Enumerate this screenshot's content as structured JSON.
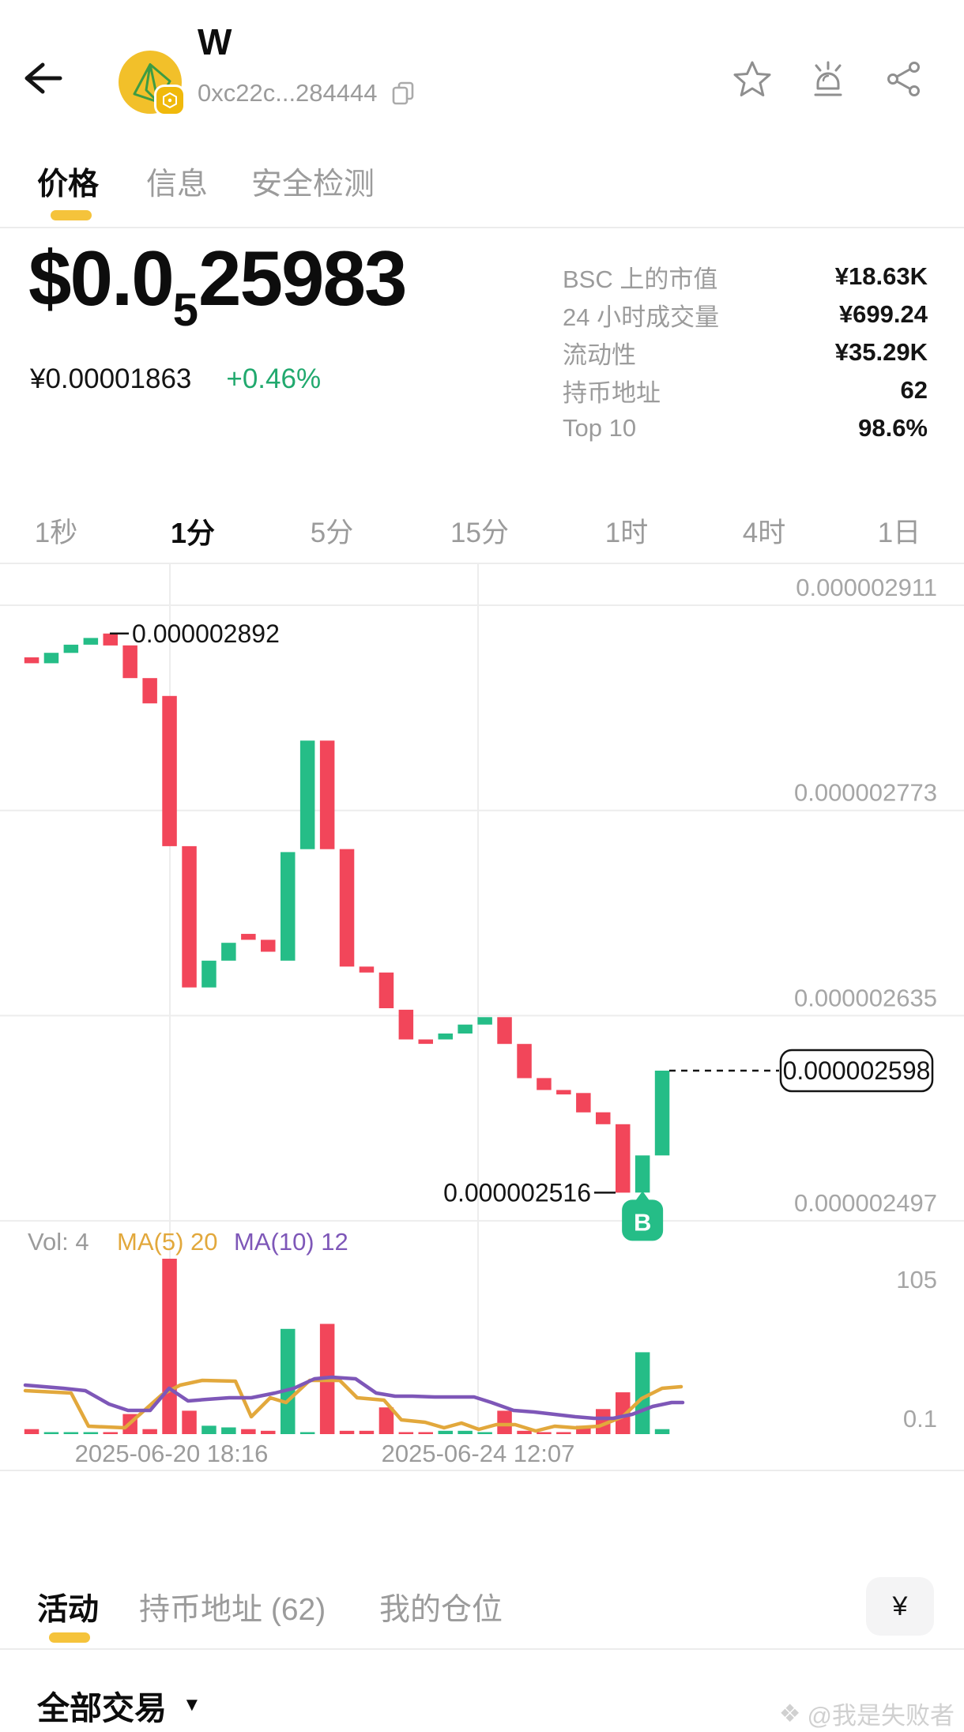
{
  "header": {
    "token_name": "W",
    "contract_address": "0xc22c...284444",
    "icons": {
      "back": "left-arrow",
      "token_logo": "yellow-circle-green-origami",
      "chain_badge": "bnb-hexagon",
      "copy": "copy-squares",
      "favorite": "star-outline",
      "alert": "alarm-siren",
      "share": "share-nodes"
    }
  },
  "main_tabs": {
    "items": [
      {
        "label": "价格",
        "active": true
      },
      {
        "label": "信息",
        "active": false
      },
      {
        "label": "安全检测",
        "active": false
      }
    ]
  },
  "price": {
    "usd_prefix": "$0.0",
    "usd_subscript": "5",
    "usd_digits": "25983",
    "cny_value": "¥0.00001863",
    "change_percent": "+0.46%"
  },
  "stats": {
    "rows": [
      {
        "label": "BSC 上的市值",
        "value": "¥18.63K"
      },
      {
        "label": "24 小时成交量",
        "value": "¥699.24"
      },
      {
        "label": "流动性",
        "value": "¥35.29K"
      },
      {
        "label": "持币地址",
        "value": "62"
      },
      {
        "label": "Top 10",
        "value": "98.6%"
      }
    ]
  },
  "intervals": {
    "items": [
      "1秒",
      "1分",
      "5分",
      "15分",
      "1时",
      "4时",
      "1日"
    ],
    "active_index": 1
  },
  "chart": {
    "y_axis_labels": [
      "0.000002911",
      "0.000002773",
      "0.000002635",
      "0.000002497"
    ],
    "volume_axis_labels": [
      "105",
      "0.1"
    ],
    "x_axis_labels": [
      "2025-06-20 18:16",
      "2025-06-24 12:07"
    ],
    "legend": {
      "vol": "Vol: 4",
      "ma5": "MA(5) 20",
      "ma10": "MA(10) 12"
    },
    "annotations": {
      "high_label": "0.000002892",
      "low_label": "0.000002516",
      "current_price_label": "0.000002598",
      "buy_marker": "B"
    }
  },
  "chart_data": {
    "type": "candlestick+volume",
    "price_unit_multiplier": "1e-6",
    "grid_prices": [
      2.911,
      2.773,
      2.635,
      2.497
    ],
    "high_annotated": 2.892,
    "low_annotated": 2.516,
    "current_price": 2.598,
    "vertical_grid_x": [
      215,
      605
    ],
    "candles_oc": [
      [
        2.876,
        2.872
      ],
      [
        2.872,
        2.879
      ],
      [
        2.879,
        2.8845
      ],
      [
        2.8845,
        2.889
      ],
      [
        2.892,
        2.884
      ],
      [
        2.884,
        2.862
      ],
      [
        2.862,
        2.845
      ],
      [
        2.85,
        2.749
      ],
      [
        2.749,
        2.654
      ],
      [
        2.654,
        2.672
      ],
      [
        2.672,
        2.684
      ],
      [
        2.69,
        2.686
      ],
      [
        2.686,
        2.678
      ],
      [
        2.672,
        2.745
      ],
      [
        2.747,
        2.82
      ],
      [
        2.82,
        2.747
      ],
      [
        2.747,
        2.668
      ],
      [
        2.668,
        2.664
      ],
      [
        2.664,
        2.64
      ],
      [
        2.639,
        2.619
      ],
      [
        2.619,
        2.616
      ],
      [
        2.619,
        2.623
      ],
      [
        2.623,
        2.629
      ],
      [
        2.629,
        2.634
      ],
      [
        2.634,
        2.616
      ],
      [
        2.616,
        2.593
      ],
      [
        2.593,
        2.585
      ],
      [
        2.585,
        2.582
      ],
      [
        2.583,
        2.57
      ],
      [
        2.57,
        2.562
      ],
      [
        2.562,
        2.516
      ],
      [
        2.516,
        2.541
      ],
      [
        2.541,
        2.598
      ]
    ],
    "volumes": [
      3,
      1,
      1,
      1,
      1,
      12,
      3,
      105,
      14,
      5,
      4,
      3,
      2,
      63,
      1,
      66,
      2,
      2,
      16,
      1,
      1,
      2,
      2,
      1,
      14,
      2,
      1,
      1,
      5,
      15,
      25,
      49,
      3
    ],
    "volume_max": 105,
    "buy_marker_candle_index": 31,
    "ma5_points": [
      [
        32,
        55
      ],
      [
        90,
        52
      ],
      [
        112,
        10
      ],
      [
        158,
        8
      ],
      [
        205,
        50
      ],
      [
        228,
        62
      ],
      [
        256,
        68
      ],
      [
        298,
        67
      ],
      [
        318,
        22
      ],
      [
        342,
        46
      ],
      [
        362,
        40
      ],
      [
        392,
        68
      ],
      [
        430,
        68
      ],
      [
        452,
        46
      ],
      [
        486,
        43
      ],
      [
        508,
        18
      ],
      [
        538,
        15
      ],
      [
        562,
        8
      ],
      [
        584,
        14
      ],
      [
        606,
        6
      ],
      [
        628,
        12
      ],
      [
        652,
        12
      ],
      [
        678,
        4
      ],
      [
        702,
        10
      ],
      [
        728,
        8
      ],
      [
        758,
        10
      ],
      [
        788,
        22
      ],
      [
        812,
        45
      ],
      [
        838,
        58
      ],
      [
        862,
        60
      ]
    ],
    "ma10_points": [
      [
        32,
        62
      ],
      [
        80,
        58
      ],
      [
        108,
        55
      ],
      [
        138,
        38
      ],
      [
        162,
        30
      ],
      [
        190,
        30
      ],
      [
        214,
        58
      ],
      [
        238,
        42
      ],
      [
        262,
        44
      ],
      [
        290,
        46
      ],
      [
        318,
        46
      ],
      [
        348,
        52
      ],
      [
        372,
        58
      ],
      [
        398,
        70
      ],
      [
        420,
        72
      ],
      [
        450,
        70
      ],
      [
        476,
        52
      ],
      [
        500,
        48
      ],
      [
        522,
        48
      ],
      [
        550,
        47
      ],
      [
        576,
        47
      ],
      [
        600,
        47
      ],
      [
        622,
        40
      ],
      [
        650,
        30
      ],
      [
        676,
        28
      ],
      [
        702,
        25
      ],
      [
        728,
        22
      ],
      [
        752,
        20
      ],
      [
        776,
        20
      ],
      [
        800,
        25
      ],
      [
        826,
        35
      ],
      [
        850,
        40
      ],
      [
        864,
        40
      ]
    ]
  },
  "bottom_tabs": {
    "items": [
      {
        "label": "活动",
        "active": true
      },
      {
        "label": "持币地址 (62)",
        "active": false
      },
      {
        "label": "我的仓位",
        "active": false
      }
    ],
    "currency_button": "¥"
  },
  "transactions_filter": {
    "label": "全部交易",
    "caret": "▼"
  },
  "watermark": {
    "icon": "❖",
    "text": "@我是失败者"
  },
  "colors": {
    "up_green": "#25BD87",
    "down_red": "#F2465A",
    "accent_yellow": "#F5C33B",
    "ma5_yellow": "#E2A83C",
    "ma10_purple": "#7E57B8",
    "label_gray": "#9B9B9B",
    "axis_gray": "#A6A6A6",
    "grid": "#EDEDED",
    "change_green": "#21A96E"
  }
}
